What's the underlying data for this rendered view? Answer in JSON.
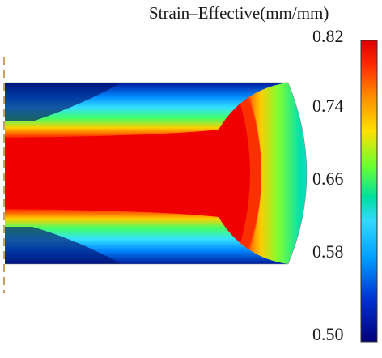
{
  "legend": {
    "title": "Strain–Effective(mm/mm)",
    "ticks": [
      "0.82",
      "0.74",
      "0.66",
      "0.58",
      "0.50"
    ],
    "max": 0.82,
    "min": 0.5
  },
  "colors": {
    "colormap": [
      "#dd0000",
      "#ff2a00",
      "#ff8800",
      "#ffe000",
      "#66ff33",
      "#00e0a0",
      "#33d8ff",
      "#00a0ff",
      "#0030d0",
      "#00007a"
    ],
    "high": "#f00000",
    "low": "#0a1080"
  }
}
